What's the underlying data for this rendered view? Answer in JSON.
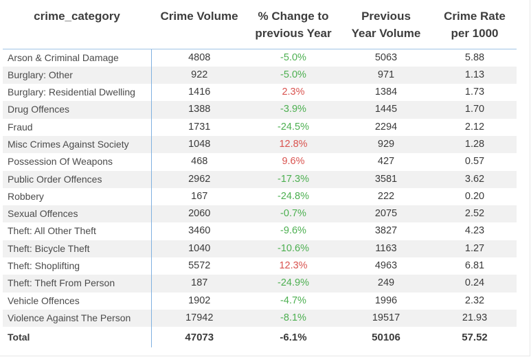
{
  "headers": {
    "category": "crime_category",
    "volume": "Crime Volume",
    "change_line1": "% Change to",
    "change_line2": "previous Year",
    "prev_line1": "Previous",
    "prev_line2": "Year Volume",
    "rate_line1": "Crime Rate",
    "rate_line2": "per 1000"
  },
  "rows": [
    {
      "category": "Arson & Criminal Damage",
      "volume": "4808",
      "change": "-5.0%",
      "trend": "down",
      "previous": "5063",
      "rate": "5.88"
    },
    {
      "category": "Burglary: Other",
      "volume": "922",
      "change": "-5.0%",
      "trend": "down",
      "previous": "971",
      "rate": "1.13"
    },
    {
      "category": "Burglary: Residential Dwelling",
      "volume": "1416",
      "change": "2.3%",
      "trend": "up",
      "previous": "1384",
      "rate": "1.73"
    },
    {
      "category": "Drug Offences",
      "volume": "1388",
      "change": "-3.9%",
      "trend": "down",
      "previous": "1445",
      "rate": "1.70"
    },
    {
      "category": "Fraud",
      "volume": "1731",
      "change": "-24.5%",
      "trend": "down",
      "previous": "2294",
      "rate": "2.12"
    },
    {
      "category": "Misc Crimes Against Society",
      "volume": "1048",
      "change": "12.8%",
      "trend": "up",
      "previous": "929",
      "rate": "1.28"
    },
    {
      "category": "Possession Of Weapons",
      "volume": "468",
      "change": "9.6%",
      "trend": "up",
      "previous": "427",
      "rate": "0.57"
    },
    {
      "category": "Public Order Offences",
      "volume": "2962",
      "change": "-17.3%",
      "trend": "down",
      "previous": "3581",
      "rate": "3.62"
    },
    {
      "category": "Robbery",
      "volume": "167",
      "change": "-24.8%",
      "trend": "down",
      "previous": "222",
      "rate": "0.20"
    },
    {
      "category": "Sexual Offences",
      "volume": "2060",
      "change": "-0.7%",
      "trend": "down",
      "previous": "2075",
      "rate": "2.52"
    },
    {
      "category": "Theft: All Other Theft",
      "volume": "3460",
      "change": "-9.6%",
      "trend": "down",
      "previous": "3827",
      "rate": "4.23"
    },
    {
      "category": "Theft: Bicycle Theft",
      "volume": "1040",
      "change": "-10.6%",
      "trend": "down",
      "previous": "1163",
      "rate": "1.27"
    },
    {
      "category": "Theft: Shoplifting",
      "volume": "5572",
      "change": "12.3%",
      "trend": "up",
      "previous": "4963",
      "rate": "6.81"
    },
    {
      "category": "Theft: Theft From Person",
      "volume": "187",
      "change": "-24.9%",
      "trend": "down",
      "previous": "249",
      "rate": "0.24"
    },
    {
      "category": "Vehicle Offences",
      "volume": "1902",
      "change": "-4.7%",
      "trend": "down",
      "previous": "1996",
      "rate": "2.32"
    },
    {
      "category": "Violence Against The Person",
      "volume": "17942",
      "change": "-8.1%",
      "trend": "down",
      "previous": "19517",
      "rate": "21.93"
    }
  ],
  "total": {
    "label": "Total",
    "volume": "47073",
    "change": "-6.1%",
    "previous": "50106",
    "rate": "57.52"
  },
  "colors": {
    "up": "#d9534f",
    "down": "#4caf50",
    "header_rule": "#9fc3e6",
    "category_divider": "#7fb0e0",
    "stripe": "#f1f1f1"
  }
}
